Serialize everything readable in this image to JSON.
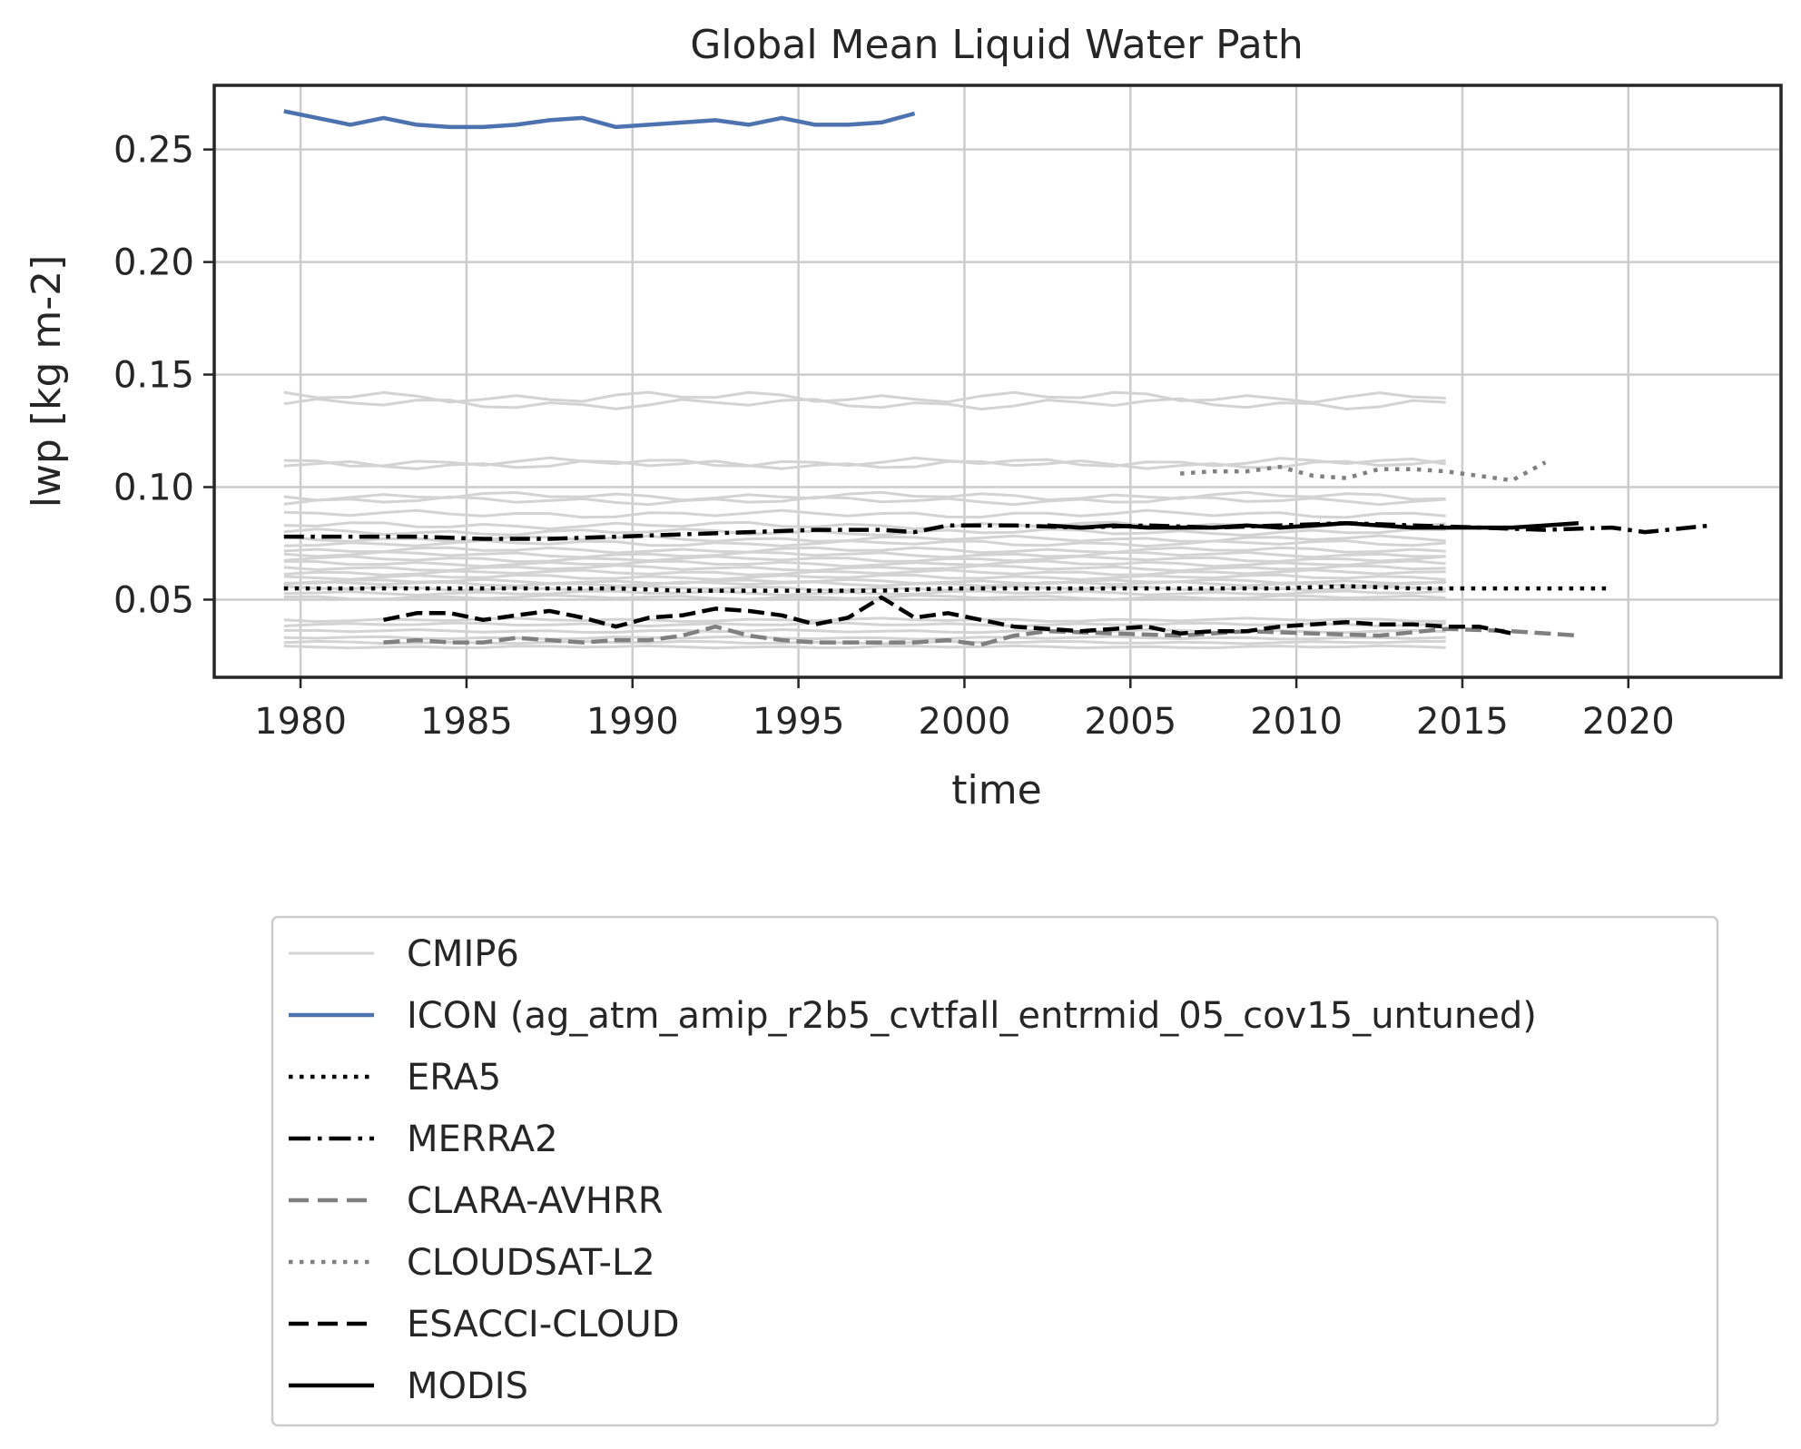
{
  "chart_data": {
    "type": "line",
    "title": "Global Mean Liquid Water Path",
    "xlabel": "time",
    "ylabel": "lwp [kg m-2]",
    "xlim": [
      1977.4,
      2024.6
    ],
    "ylim": [
      0.0155,
      0.2785
    ],
    "xticks": [
      1980,
      1985,
      1990,
      1995,
      2000,
      2005,
      2010,
      2015,
      2020
    ],
    "yticks": [
      0.05,
      0.1,
      0.15,
      0.2,
      0.25
    ],
    "xtick_labels": [
      "1980",
      "1985",
      "1990",
      "1995",
      "2000",
      "2005",
      "2010",
      "2015",
      "2020"
    ],
    "ytick_labels": [
      "0.05",
      "0.10",
      "0.15",
      "0.20",
      "0.25"
    ],
    "grid": true,
    "legend_position": "below",
    "cmip6_color": "#d3d3d3",
    "cmip6": {
      "name": "CMIP6",
      "x_start": 1979.5,
      "x_end": 2014.5,
      "base_levels": [
        0.137,
        0.14,
        0.11,
        0.111,
        0.096,
        0.094,
        0.088,
        0.083,
        0.08,
        0.077,
        0.075,
        0.072,
        0.07,
        0.068,
        0.066,
        0.064,
        0.062,
        0.06,
        0.058,
        0.057,
        0.055,
        0.053,
        0.051,
        0.041,
        0.039,
        0.036,
        0.033,
        0.031,
        0.029
      ]
    },
    "series": [
      {
        "name": "ICON (ag_atm_amip_r2b5_cvtfall_entrmid_05_cov15_untuned)",
        "color": "#4c72b0",
        "dash": "solid",
        "width": 4.5,
        "x": [
          1979.5,
          1980.5,
          1981.5,
          1982.5,
          1983.5,
          1984.5,
          1985.5,
          1986.5,
          1987.5,
          1988.5,
          1989.5,
          1990.5,
          1991.5,
          1992.5,
          1993.5,
          1994.5,
          1995.5,
          1996.5,
          1997.5,
          1998.5
        ],
        "values": [
          0.267,
          0.264,
          0.261,
          0.264,
          0.261,
          0.26,
          0.26,
          0.261,
          0.263,
          0.264,
          0.26,
          0.261,
          0.262,
          0.263,
          0.261,
          0.264,
          0.261,
          0.261,
          0.262,
          0.266
        ]
      },
      {
        "name": "ERA5",
        "color": "#000000",
        "dash": "dotted",
        "width": 4.5,
        "x": [
          1979.5,
          1981.5,
          1983.5,
          1985.5,
          1987.5,
          1989.5,
          1991.5,
          1993.5,
          1995.5,
          1997.5,
          1999.5,
          2001.5,
          2003.5,
          2005.5,
          2007.5,
          2009.5,
          2011.5,
          2013.5,
          2015.5,
          2017.5,
          2019.5
        ],
        "values": [
          0.055,
          0.055,
          0.055,
          0.055,
          0.055,
          0.055,
          0.054,
          0.054,
          0.054,
          0.054,
          0.055,
          0.055,
          0.055,
          0.055,
          0.055,
          0.055,
          0.056,
          0.055,
          0.055,
          0.055,
          0.055
        ]
      },
      {
        "name": "MERRA2",
        "color": "#000000",
        "dash": "dashdot",
        "width": 4.5,
        "x": [
          1979.5,
          1981.5,
          1983.5,
          1985.5,
          1987.5,
          1989.5,
          1991.5,
          1993.5,
          1995.5,
          1997.5,
          1998.5,
          1999.5,
          2001.5,
          2003.5,
          2005.5,
          2007.5,
          2009.5,
          2011.5,
          2013.5,
          2015.5,
          2017.5,
          2019.5,
          2020.5,
          2022.5
        ],
        "values": [
          0.078,
          0.078,
          0.078,
          0.077,
          0.077,
          0.078,
          0.079,
          0.08,
          0.081,
          0.081,
          0.08,
          0.083,
          0.083,
          0.082,
          0.083,
          0.082,
          0.083,
          0.084,
          0.083,
          0.082,
          0.081,
          0.082,
          0.08,
          0.083
        ]
      },
      {
        "name": "CLARA-AVHRR",
        "color": "#808080",
        "dash": "dashed",
        "width": 4.5,
        "x": [
          1982.5,
          1983.5,
          1984.5,
          1985.5,
          1986.5,
          1987.5,
          1988.5,
          1989.5,
          1990.5,
          1991.5,
          1992.5,
          1993.5,
          1994.5,
          1995.5,
          1996.5,
          1997.5,
          1998.5,
          1999.5,
          2000.5,
          2001.5,
          2002.5,
          2004.5,
          2006.5,
          2008.5,
          2010.5,
          2012.5,
          2014.5,
          2016.5,
          2018.5
        ],
        "values": [
          0.031,
          0.032,
          0.031,
          0.031,
          0.033,
          0.032,
          0.031,
          0.032,
          0.032,
          0.034,
          0.038,
          0.034,
          0.032,
          0.031,
          0.031,
          0.031,
          0.031,
          0.032,
          0.03,
          0.034,
          0.036,
          0.035,
          0.034,
          0.036,
          0.035,
          0.034,
          0.037,
          0.036,
          0.034
        ]
      },
      {
        "name": "CLOUDSAT-L2",
        "color": "#808080",
        "dash": "dotted",
        "width": 4.5,
        "x": [
          2006.5,
          2007.5,
          2008.5,
          2009.5,
          2010.5,
          2011.5,
          2012.5,
          2013.5,
          2014.5,
          2015.5,
          2016.5,
          2017.5
        ],
        "values": [
          0.106,
          0.107,
          0.107,
          0.109,
          0.105,
          0.104,
          0.108,
          0.108,
          0.107,
          0.105,
          0.103,
          0.111
        ]
      },
      {
        "name": "ESACCI-CLOUD",
        "color": "#000000",
        "dash": "dashed",
        "width": 4.5,
        "x": [
          1982.5,
          1983.5,
          1984.5,
          1985.5,
          1986.5,
          1987.5,
          1988.5,
          1989.5,
          1990.5,
          1991.5,
          1992.5,
          1993.5,
          1994.5,
          1995.5,
          1996.5,
          1997.5,
          1998.5,
          1999.5,
          2000.5,
          2001.5,
          2002.5,
          2003.5,
          2004.5,
          2005.5,
          2006.5,
          2007.5,
          2008.5,
          2009.5,
          2010.5,
          2011.5,
          2012.5,
          2013.5,
          2014.5,
          2015.5,
          2016.5
        ],
        "values": [
          0.041,
          0.044,
          0.044,
          0.041,
          0.043,
          0.045,
          0.042,
          0.038,
          0.042,
          0.043,
          0.046,
          0.045,
          0.043,
          0.039,
          0.042,
          0.051,
          0.042,
          0.044,
          0.041,
          0.038,
          0.037,
          0.036,
          0.037,
          0.038,
          0.035,
          0.036,
          0.036,
          0.038,
          0.039,
          0.04,
          0.039,
          0.039,
          0.038,
          0.038,
          0.035
        ]
      },
      {
        "name": "MODIS",
        "color": "#000000",
        "dash": "solid",
        "width": 4.5,
        "x": [
          2002.5,
          2003.5,
          2004.5,
          2005.5,
          2006.5,
          2007.5,
          2008.5,
          2009.5,
          2010.5,
          2011.5,
          2012.5,
          2013.5,
          2014.5,
          2015.5,
          2016.5,
          2017.5,
          2018.5
        ],
        "values": [
          0.083,
          0.082,
          0.083,
          0.082,
          0.082,
          0.082,
          0.083,
          0.082,
          0.083,
          0.084,
          0.083,
          0.082,
          0.082,
          0.082,
          0.082,
          0.083,
          0.084
        ]
      }
    ]
  }
}
